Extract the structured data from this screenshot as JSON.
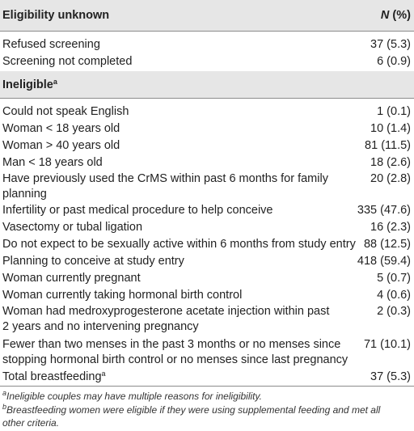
{
  "header": {
    "label": "Eligibility unknown",
    "n_symbol": "N",
    "n_suffix": " (%)"
  },
  "unknown_rows": [
    {
      "label": "Refused screening",
      "value": "37 (5.3)"
    },
    {
      "label": "Screening not completed",
      "value": "6 (0.9)"
    }
  ],
  "ineligible": {
    "label": "Ineligible",
    "sup": "a"
  },
  "ineligible_rows": [
    {
      "lines": [
        "Could not speak English"
      ],
      "value": "1 (0.1)"
    },
    {
      "lines": [
        "Woman < 18 years old"
      ],
      "value": "10 (1.4)"
    },
    {
      "lines": [
        "Woman > 40 years old"
      ],
      "value": "81 (11.5)"
    },
    {
      "lines": [
        "Man < 18 years old"
      ],
      "value": "18 (2.6)"
    },
    {
      "lines": [
        "Have previously used the CrMS within past 6 months for family",
        "planning"
      ],
      "value": "20 (2.8)"
    },
    {
      "lines": [
        "Infertility or past medical procedure to help conceive"
      ],
      "value": "335 (47.6)"
    },
    {
      "lines": [
        "Vasectomy or tubal ligation"
      ],
      "value": "16 (2.3)"
    },
    {
      "lines": [
        "Do not expect to be sexually active within 6 months from study entry"
      ],
      "value": "88 (12.5)"
    },
    {
      "lines": [
        "Planning to conceive at study entry"
      ],
      "value": "418 (59.4)"
    },
    {
      "lines": [
        "Woman currently pregnant"
      ],
      "value": "5 (0.7)"
    },
    {
      "lines": [
        "Woman currently taking hormonal birth control"
      ],
      "value": "4 (0.6)"
    },
    {
      "lines": [
        "Woman had medroxyprogesterone acetate injection within past",
        "2 years and no intervening pregnancy"
      ],
      "value": "2 (0.3)"
    },
    {
      "lines": [
        "Fewer than two menses in the past 3 months or no menses since",
        "stopping hormonal birth control or no menses since last pregnancy"
      ],
      "value": "71 (10.1)"
    }
  ],
  "total_row": {
    "label": "Total breastfeeding",
    "sup": "a",
    "value": "37 (5.3)"
  },
  "footnotes": [
    {
      "sup": "a",
      "text": "Ineligible couples may have multiple reasons for ineligibility."
    },
    {
      "sup": "b",
      "text": "Breastfeeding women were eligible if they were using supplemental feeding and met all",
      "cont": "other criteria."
    }
  ]
}
